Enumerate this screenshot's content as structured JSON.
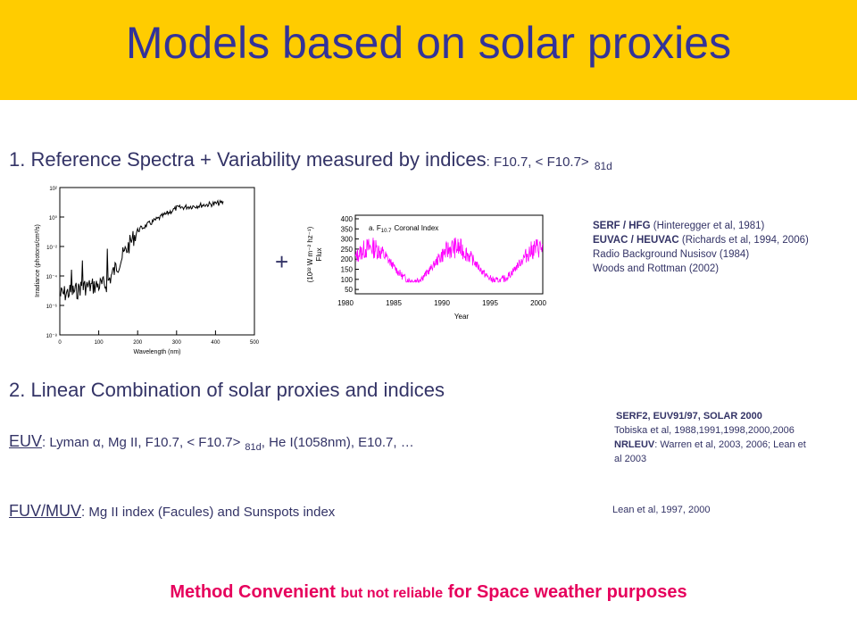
{
  "title": "Models based on solar proxies",
  "section1": {
    "number": "1.",
    "text": "Reference Spectra + Variability measured by indices",
    "indices": ": F10.7, < F10.7>",
    "sub": "81d"
  },
  "plus": "+",
  "refs1": {
    "line1_bold": "SERF / HFG",
    "line1_rest": "(Hinteregger et al, 1981)",
    "line2_bold": "EUVAC / HEUVAC",
    "line2_rest": "(Richards et al, 1994, 2006)",
    "line3": "Radio Background Nusisov (1984)",
    "line4": "Woods and Rottman (2002)"
  },
  "spectrum_plot": {
    "ylabel": "Irradiance (photons/cm²/s)",
    "xlabel": "Wavelength (nm)",
    "xticks": [
      "0",
      "100",
      "200",
      "300",
      "400",
      "500"
    ],
    "yticks": [
      "10²",
      "10⁰",
      "10⁻²",
      "10⁻⁴",
      "10⁻⁶",
      "10⁻⁸"
    ]
  },
  "f107_plot": {
    "label": "a. F",
    "label_sub": "10.7",
    "label_rest": "Coronal Index",
    "ylabel_top": "Flux",
    "ylabel_mid": "(10²² W m⁻² hz⁻¹)",
    "xlabel": "Year",
    "xticks": [
      "1980",
      "1985",
      "1990",
      "1995",
      "2000"
    ],
    "yticks": [
      "400",
      "350",
      "300",
      "250",
      "200",
      "150",
      "100",
      "50"
    ],
    "line_color": "#FF00FF"
  },
  "section2": {
    "number": "2.",
    "text": "Linear Combination of solar proxies and indices"
  },
  "euv": {
    "label": "EUV",
    "text": ": Lyman α, Mg II, F10.7, < F10.7>",
    "sub": "81d",
    "text2": ", He I(1058nm), E10.7, …"
  },
  "refs2": {
    "line1": "SERF2, EUV91/97, SOLAR 2000",
    "line2": "Tobiska et al, 1988,1991,1998,2000,2006",
    "line3_bold": "NRLEUV",
    "line3_rest": ": Warren et al, 2003, 2006; Lean et",
    "line4": "al 2003"
  },
  "fuv": {
    "label": "FUV/MUV",
    "text": ": Mg II index (Facules) and Sunspots index"
  },
  "refs3": "Lean et al, 1997, 2000",
  "bottom": {
    "part1": "Method Convenient",
    "part2": "but not reliable",
    "part3": "for Space weather purposes"
  },
  "colors": {
    "banner": "#FFCC00",
    "title": "#333399",
    "text": "#333366",
    "emphasis": "#E6005C"
  }
}
